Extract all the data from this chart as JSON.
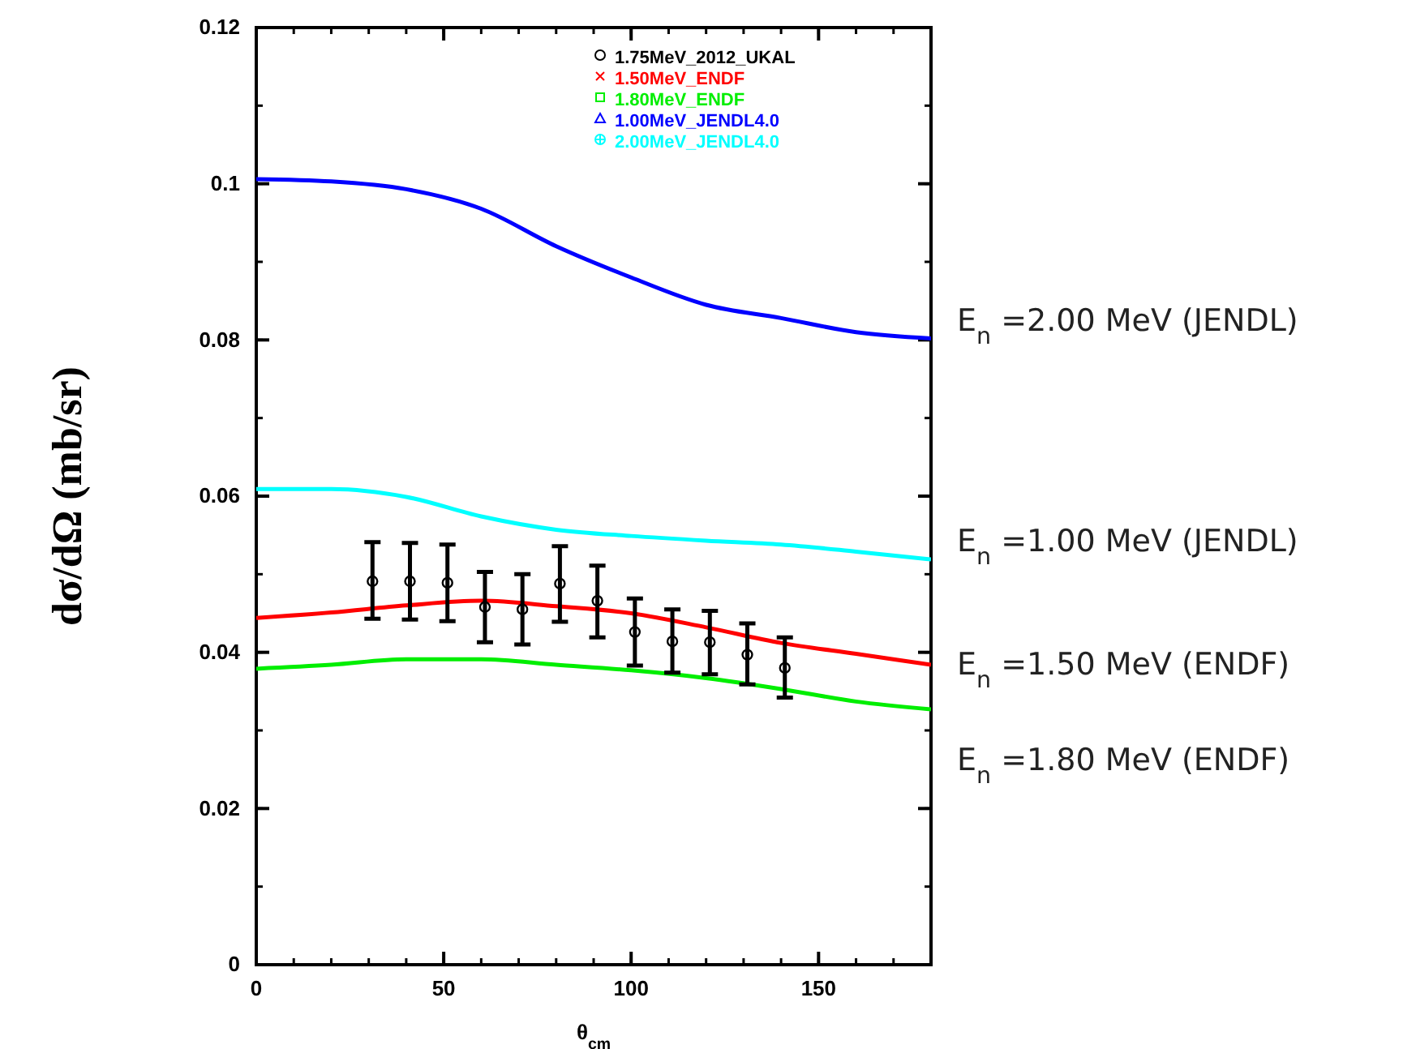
{
  "chart_data": {
    "type": "line",
    "xlabel": "θ$_{cm}$",
    "ylabel": "dσ/dΩ (mb/sr)",
    "xlim": [
      0,
      180
    ],
    "xticks": [
      0,
      50,
      100,
      150
    ],
    "ylim": [
      0,
      0.12
    ],
    "yticks": [
      0,
      0.02,
      0.04,
      0.06,
      0.08,
      0.1,
      0.12
    ],
    "legend": "top right",
    "grid": false,
    "series": [
      {
        "name": "1.75MeV_2012_UKAL",
        "type": "scatter",
        "marker": "circle",
        "color": "#000000",
        "x": [
          31,
          41,
          51,
          61,
          71,
          81,
          91,
          101,
          111,
          121,
          131,
          141
        ],
        "values": [
          0.0491,
          0.0491,
          0.0489,
          0.0458,
          0.0455,
          0.0488,
          0.0466,
          0.0426,
          0.0414,
          0.0413,
          0.0397,
          0.038
        ],
        "errors": [
          [
            0.0443,
            0.0541
          ],
          [
            0.0442,
            0.054
          ],
          [
            0.044,
            0.0538
          ],
          [
            0.0413,
            0.0503
          ],
          [
            0.041,
            0.05
          ],
          [
            0.0439,
            0.0536
          ],
          [
            0.0419,
            0.0511
          ],
          [
            0.0383,
            0.0469
          ],
          [
            0.0374,
            0.0455
          ],
          [
            0.0372,
            0.0453
          ],
          [
            0.0359,
            0.0437
          ],
          [
            0.0342,
            0.0419
          ]
        ]
      },
      {
        "name": "1.50MeV_ENDF",
        "color": "#ff0000",
        "x": [
          0,
          20,
          40,
          60,
          80,
          100,
          120,
          140,
          160,
          180
        ],
        "values": [
          0.0444,
          0.0451,
          0.046,
          0.0466,
          0.0459,
          0.045,
          0.0432,
          0.0412,
          0.0398,
          0.0384
        ]
      },
      {
        "name": "1.80MeV_ENDF",
        "color": "#00ee00",
        "x": [
          0,
          20,
          40,
          60,
          80,
          100,
          120,
          140,
          160,
          180
        ],
        "values": [
          0.0379,
          0.0384,
          0.0391,
          0.0391,
          0.0384,
          0.0377,
          0.0367,
          0.0353,
          0.0337,
          0.0327
        ]
      },
      {
        "name": "1.00MeV_JENDL4.0",
        "color": "#0000ff",
        "x": [
          0,
          20,
          40,
          60,
          80,
          100,
          120,
          140,
          160,
          180
        ],
        "values": [
          0.1006,
          0.1003,
          0.0993,
          0.0968,
          0.092,
          0.088,
          0.0845,
          0.0828,
          0.081,
          0.0802
        ]
      },
      {
        "name": "2.00MeV_JENDL4.0",
        "color": "#00ffff",
        "x": [
          0,
          20,
          40,
          60,
          80,
          100,
          120,
          140,
          160,
          180
        ],
        "values": [
          0.0609,
          0.0609,
          0.0599,
          0.0574,
          0.0557,
          0.0549,
          0.0543,
          0.0538,
          0.0529,
          0.0519
        ]
      }
    ],
    "annotations": [
      "E$_{n}$ =2.00 MeV (JENDL)",
      "E$_{n}$ =1.00 MeV (JENDL)",
      "E$_{n}$ =1.50 MeV (ENDF)",
      "E$_{n}$ =1.80 MeV (ENDF)"
    ]
  }
}
